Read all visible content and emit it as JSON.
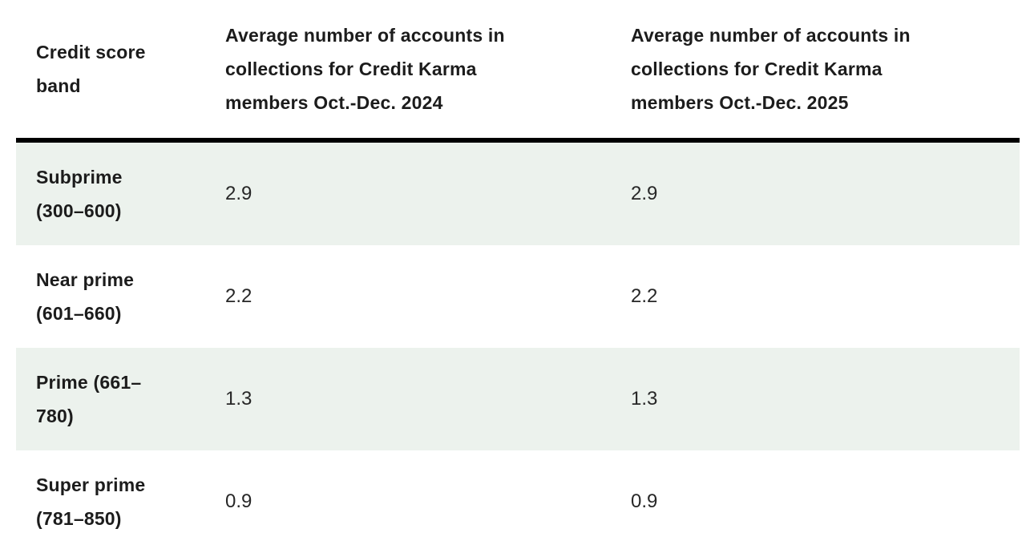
{
  "colors": {
    "row_stripe": "#ecf2ed",
    "rule": "#000000",
    "text_strong": "#1c1c1c",
    "text_value": "#272727",
    "background": "#ffffff"
  },
  "table": {
    "headers": [
      "Credit score\nband",
      "Average number of accounts in\ncollections for Credit Karma\nmembers Oct.-Dec. 2024",
      "Average number of accounts in\ncollections for Credit Karma\nmembers Oct.-Dec. 2025"
    ],
    "rows": [
      {
        "band": "Subprime\n(300–600)",
        "value_2024": "2.9",
        "value_2025": "2.9"
      },
      {
        "band": "Near prime\n(601–660)",
        "value_2024": "2.2",
        "value_2025": "2.2"
      },
      {
        "band": "Prime (661–\n780)",
        "value_2024": "1.3",
        "value_2025": "1.3"
      },
      {
        "band": "Super prime\n(781–850)",
        "value_2024": "0.9",
        "value_2025": "0.9"
      }
    ]
  },
  "chart_data": {
    "type": "table",
    "columns": [
      "Credit score band",
      "Average number of accounts in collections for Credit Karma members Oct.-Dec. 2024",
      "Average number of accounts in collections for Credit Karma members Oct.-Dec. 2025"
    ],
    "rows": [
      [
        "Subprime (300–600)",
        2.9,
        2.9
      ],
      [
        "Near prime (601–660)",
        2.2,
        2.2
      ],
      [
        "Prime (661–780)",
        1.3,
        1.3
      ],
      [
        "Super prime (781–850)",
        0.9,
        0.9
      ]
    ],
    "layout_hints": {
      "striped_rows": [
        0,
        2
      ],
      "header_divider": "thick-black",
      "grid": "off"
    }
  }
}
